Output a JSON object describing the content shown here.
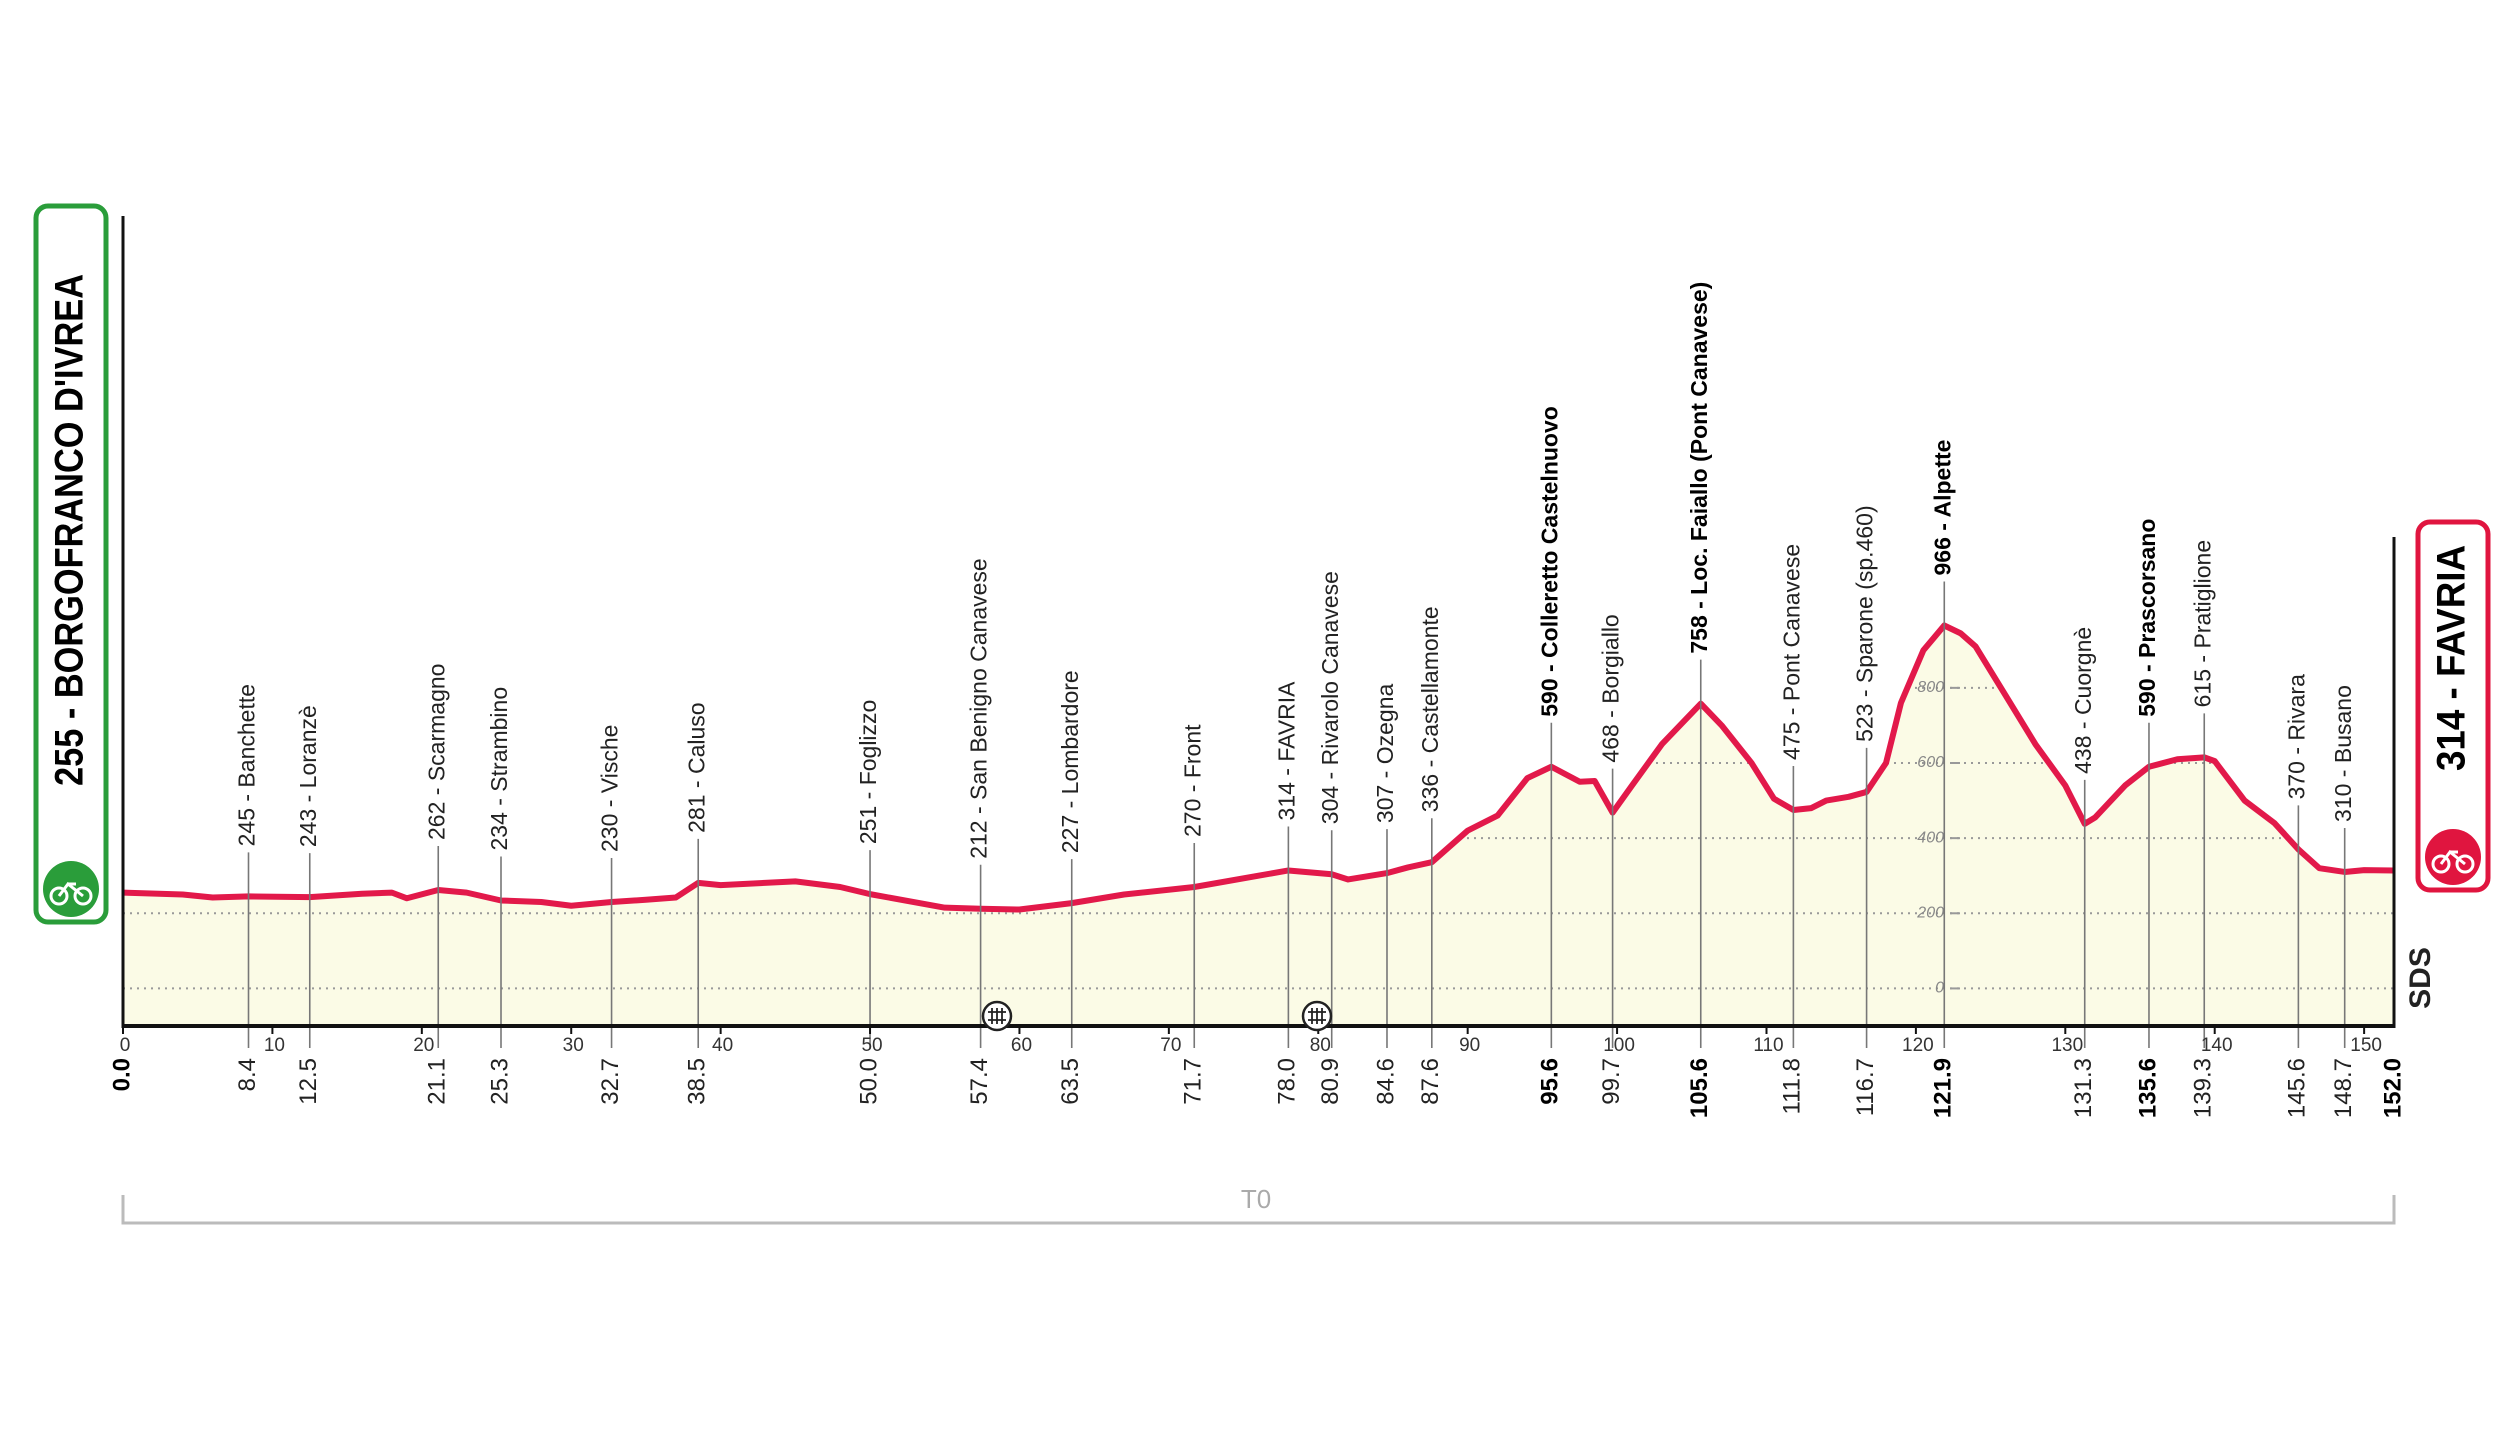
{
  "chart_data": {
    "type": "area",
    "start": {
      "label": "255 - BORGOFRANCO D'IVREA",
      "km_label": "0.0",
      "color": "#2a9d3a"
    },
    "finish": {
      "label": "314 - FAVRIA",
      "km_label": "152.0",
      "color": "#e0153f"
    },
    "line_color": "#e2194a",
    "fill_color": "#fbfbe6",
    "x": [
      0,
      4,
      6,
      8.4,
      12.5,
      16,
      18,
      19,
      21.1,
      23,
      25.3,
      28,
      30,
      32.7,
      35,
      37,
      38.5,
      40,
      45,
      48,
      50,
      55,
      57.4,
      60,
      63.5,
      67,
      71.7,
      76,
      78,
      80.9,
      82,
      84.6,
      86,
      87.6,
      90,
      92,
      94,
      95.6,
      97.5,
      98.5,
      99.7,
      101,
      103,
      105.6,
      107,
      109,
      110.5,
      111.8,
      113,
      114,
      115.5,
      116.7,
      118,
      119,
      120.5,
      121.9,
      123,
      124,
      126,
      128,
      130,
      131.3,
      132,
      134,
      135.6,
      137.5,
      139.3,
      140,
      142,
      144,
      145.6,
      147,
      148.7,
      150,
      152
    ],
    "values": [
      255,
      250,
      242,
      245,
      243,
      252,
      255,
      240,
      262,
      255,
      234,
      230,
      220,
      230,
      236,
      242,
      281,
      275,
      285,
      270,
      251,
      215,
      212,
      210,
      227,
      250,
      270,
      300,
      314,
      304,
      290,
      307,
      322,
      336,
      420,
      460,
      560,
      590,
      550,
      552,
      468,
      540,
      650,
      758,
      700,
      600,
      505,
      475,
      480,
      500,
      510,
      523,
      600,
      760,
      900,
      966,
      945,
      910,
      780,
      650,
      540,
      438,
      455,
      540,
      590,
      610,
      615,
      605,
      500,
      440,
      370,
      320,
      310,
      315,
      314
    ],
    "waypoints": [
      {
        "km": 8.4,
        "km_label": "8.4",
        "name": "245 - Banchette",
        "bold": false
      },
      {
        "km": 12.5,
        "km_label": "12.5",
        "name": "243 - Loranzè",
        "bold": false
      },
      {
        "km": 21.1,
        "km_label": "21.1",
        "name": "262 - Scarmagno",
        "bold": false
      },
      {
        "km": 25.3,
        "km_label": "25.3",
        "name": "234 - Strambino",
        "bold": false
      },
      {
        "km": 32.7,
        "km_label": "32.7",
        "name": "230 - Vische",
        "bold": false
      },
      {
        "km": 38.5,
        "km_label": "38.5",
        "name": "281 - Caluso",
        "bold": false
      },
      {
        "km": 50,
        "km_label": "50.0",
        "name": "251 - Foglizzo",
        "bold": false
      },
      {
        "km": 57.4,
        "km_label": "57.4",
        "name": "212 - San Benigno Canavese",
        "bold": false
      },
      {
        "km": 63.5,
        "km_label": "63.5",
        "name": "227 - Lombardore",
        "bold": false
      },
      {
        "km": 71.7,
        "km_label": "71.7",
        "name": "270 - Front",
        "bold": false
      },
      {
        "km": 78,
        "km_label": "78.0",
        "name": "314 - FAVRIA",
        "bold": false
      },
      {
        "km": 80.9,
        "km_label": "80.9",
        "name": "304 - Rivarolo Canavese",
        "bold": false
      },
      {
        "km": 84.6,
        "km_label": "84.6",
        "name": "307 - Ozegna",
        "bold": false
      },
      {
        "km": 87.6,
        "km_label": "87.6",
        "name": "336 - Castellamonte",
        "bold": false
      },
      {
        "km": 95.6,
        "km_label": "95.6",
        "name": "590 - Colleretto Castelnuovo",
        "bold": true
      },
      {
        "km": 99.7,
        "km_label": "99.7",
        "name": "468 - Borgiallo",
        "bold": false
      },
      {
        "km": 105.6,
        "km_label": "105.6",
        "name": "758 - Loc. Faiallo (Pont Canavese)",
        "bold": true
      },
      {
        "km": 111.8,
        "km_label": "111.8",
        "name": "475 - Pont Canavese",
        "bold": false
      },
      {
        "km": 116.7,
        "km_label": "116.7",
        "name": "523 - Sparone (sp.460)",
        "bold": false
      },
      {
        "km": 121.9,
        "km_label": "121.9",
        "name": "966 - Alpette",
        "bold": true
      },
      {
        "km": 131.3,
        "km_label": "131.3",
        "name": "438 - Cuorgnè",
        "bold": false
      },
      {
        "km": 135.6,
        "km_label": "135.6",
        "name": "590 - Prascorsano",
        "bold": true
      },
      {
        "km": 139.3,
        "km_label": "139.3",
        "name": "615 - Pratiglione",
        "bold": false
      },
      {
        "km": 145.6,
        "km_label": "145.6",
        "name": "370 - Rivara",
        "bold": false
      },
      {
        "km": 148.7,
        "km_label": "148.7",
        "name": "310 - Busano",
        "bold": false
      }
    ],
    "xlim": [
      0,
      152
    ],
    "xticks": [
      0,
      10,
      20,
      30,
      40,
      50,
      60,
      70,
      80,
      90,
      100,
      110,
      120,
      130,
      140,
      150
    ],
    "ylim": [
      -100,
      2000
    ],
    "yticks": [
      0,
      200,
      400,
      600,
      800
    ],
    "grid": true,
    "logo": "SDS",
    "bracket_label": "T0"
  }
}
